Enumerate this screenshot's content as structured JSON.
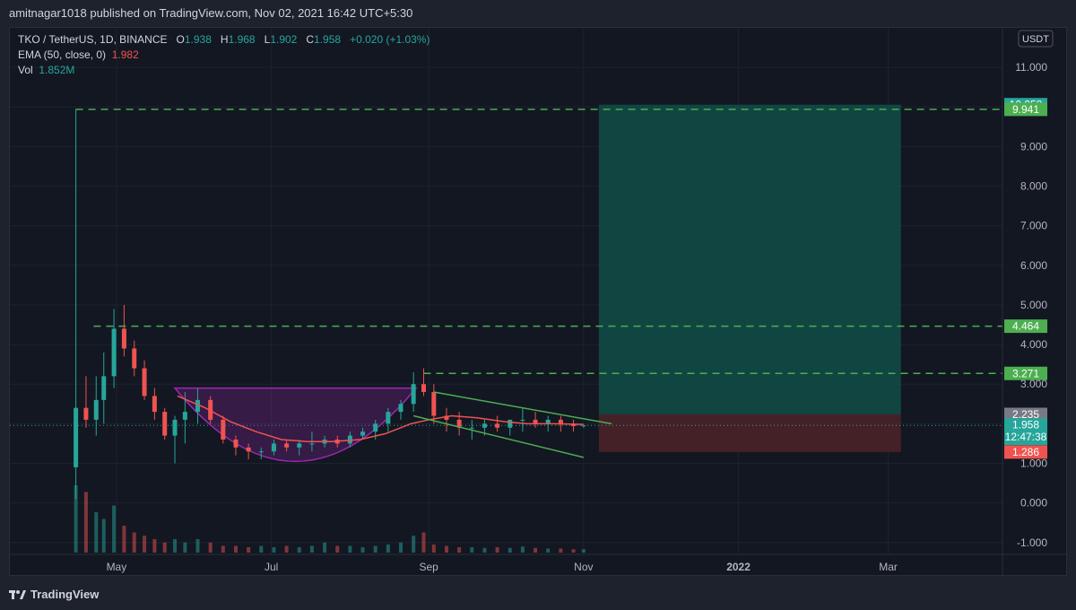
{
  "header": {
    "published": "amitnagar1018 published on TradingView.com, Nov 02, 2021 16:42 UTC+5:30"
  },
  "legend": {
    "symbol": "TKO / TetherUS, 1D, BINANCE",
    "o_label": "O",
    "o": "1.938",
    "h_label": "H",
    "h": "1.968",
    "l_label": "L",
    "l": "1.902",
    "c_label": "C",
    "c": "1.958",
    "change": "+0.020 (+1.03%)",
    "ema_label": "EMA (50, close, 0)",
    "ema_value": "1.982",
    "vol_label": "Vol",
    "vol_value": "1.852M"
  },
  "currency_badge": "USDT",
  "footer": {
    "brand": "TradingView"
  },
  "colors": {
    "background": "#131722",
    "up": "#26a69a",
    "down": "#ef5350",
    "ema": "#ef5350",
    "level_line": "#4caf50",
    "target_zone": "#124d48",
    "stop_zone": "#4a2228",
    "cup": "#9c27b0",
    "channel": "#4caf50"
  },
  "chart_data": {
    "type": "candlestick",
    "y_axis": {
      "ticks": [
        "11.000",
        "10.000",
        "9.000",
        "8.000",
        "7.000",
        "6.000",
        "5.000",
        "4.000",
        "3.000",
        "2.000",
        "1.000",
        "0.000",
        "-1.000"
      ],
      "tick_values": [
        11,
        10,
        9,
        8,
        7,
        6,
        5,
        4,
        3,
        2,
        1,
        0,
        -1
      ],
      "range": [
        -1.3,
        12.0
      ]
    },
    "x_axis": {
      "ticks": [
        "May",
        "Jul",
        "Sep",
        "Nov",
        "2022",
        "Mar"
      ],
      "tick_dates": [
        "2021-05-01",
        "2021-07-01",
        "2021-09-01",
        "2021-11-01",
        "2022-01-01",
        "2022-03-01"
      ],
      "range": [
        "2021-03-20",
        "2022-04-15"
      ]
    },
    "price_labels": [
      {
        "value": 10.058,
        "text": "10.058",
        "kind": "target"
      },
      {
        "value": 9.941,
        "text": "9.941",
        "kind": "level"
      },
      {
        "value": 4.464,
        "text": "4.464",
        "kind": "level"
      },
      {
        "value": 3.271,
        "text": "3.271",
        "kind": "level"
      },
      {
        "value": 2.235,
        "text": "2.235",
        "kind": "entry"
      },
      {
        "value": 1.958,
        "text": "1.958",
        "kind": "last",
        "countdown": "12:47:38"
      },
      {
        "value": 1.286,
        "text": "1.286",
        "kind": "stop"
      }
    ],
    "horizontal_levels": [
      {
        "value": 9.941,
        "from": "2021-04-15"
      },
      {
        "value": 4.464,
        "from": "2021-04-22"
      },
      {
        "value": 3.271,
        "from": "2021-08-30"
      }
    ],
    "position_tool": {
      "from": "2021-11-07",
      "to": "2022-03-06",
      "entry": 2.235,
      "target": 10.058,
      "stop": 1.286
    },
    "series": [
      {
        "name": "TKO / TetherUS",
        "kind": "candles",
        "x": [
          "2021-04-15",
          "2021-04-19",
          "2021-04-23",
          "2021-04-26",
          "2021-04-30",
          "2021-05-04",
          "2021-05-08",
          "2021-05-12",
          "2021-05-16",
          "2021-05-20",
          "2021-05-24",
          "2021-05-28",
          "2021-06-02",
          "2021-06-07",
          "2021-06-12",
          "2021-06-17",
          "2021-06-22",
          "2021-06-27",
          "2021-07-02",
          "2021-07-07",
          "2021-07-12",
          "2021-07-17",
          "2021-07-22",
          "2021-07-27",
          "2021-08-01",
          "2021-08-06",
          "2021-08-11",
          "2021-08-16",
          "2021-08-21",
          "2021-08-26",
          "2021-08-30",
          "2021-09-03",
          "2021-09-08",
          "2021-09-13",
          "2021-09-18",
          "2021-09-23",
          "2021-09-28",
          "2021-10-03",
          "2021-10-08",
          "2021-10-13",
          "2021-10-18",
          "2021-10-23",
          "2021-10-28",
          "2021-11-01"
        ],
        "open": [
          0.9,
          2.4,
          2.1,
          2.6,
          3.2,
          4.4,
          3.9,
          3.4,
          2.7,
          2.3,
          1.7,
          2.1,
          2.3,
          2.6,
          2.1,
          1.6,
          1.4,
          1.3,
          1.3,
          1.5,
          1.4,
          1.5,
          1.5,
          1.6,
          1.5,
          1.7,
          1.8,
          2.0,
          2.3,
          2.5,
          3.0,
          2.8,
          2.2,
          2.1,
          1.9,
          1.9,
          2.0,
          1.9,
          2.1,
          2.1,
          2.0,
          2.1,
          2.0,
          1.94
        ],
        "high": [
          9.95,
          3.2,
          3.2,
          3.8,
          4.9,
          5.0,
          4.1,
          3.6,
          2.9,
          2.4,
          2.2,
          2.8,
          2.9,
          2.7,
          2.2,
          1.7,
          1.5,
          1.4,
          1.6,
          1.6,
          1.6,
          1.8,
          1.7,
          1.7,
          1.8,
          1.9,
          2.1,
          2.4,
          2.6,
          3.3,
          3.4,
          3.0,
          2.4,
          2.3,
          2.1,
          2.1,
          2.2,
          2.1,
          2.4,
          2.3,
          2.2,
          2.2,
          2.1,
          1.97
        ],
        "low": [
          0.1,
          1.9,
          1.7,
          2.0,
          2.9,
          3.7,
          3.2,
          2.6,
          2.1,
          1.6,
          1.0,
          1.5,
          2.0,
          2.0,
          1.5,
          1.2,
          1.1,
          1.1,
          1.2,
          1.3,
          1.2,
          1.3,
          1.4,
          1.4,
          1.4,
          1.6,
          1.6,
          1.8,
          2.1,
          2.3,
          2.7,
          2.0,
          1.8,
          1.7,
          1.6,
          1.7,
          1.8,
          1.7,
          1.8,
          1.9,
          1.8,
          1.8,
          1.8,
          1.9
        ],
        "close": [
          2.4,
          2.1,
          2.6,
          3.2,
          4.4,
          3.9,
          3.4,
          2.7,
          2.3,
          1.7,
          2.1,
          2.3,
          2.6,
          2.1,
          1.6,
          1.4,
          1.3,
          1.3,
          1.5,
          1.4,
          1.5,
          1.5,
          1.6,
          1.5,
          1.7,
          1.8,
          2.0,
          2.3,
          2.5,
          3.0,
          2.8,
          2.2,
          2.1,
          1.9,
          1.9,
          2.0,
          1.9,
          2.1,
          2.1,
          2.0,
          2.1,
          2.0,
          1.94,
          1.958
        ],
        "volume": [
          1.0,
          0.9,
          0.6,
          0.5,
          0.7,
          0.4,
          0.3,
          0.25,
          0.2,
          0.15,
          0.2,
          0.15,
          0.2,
          0.15,
          0.1,
          0.1,
          0.08,
          0.1,
          0.08,
          0.1,
          0.08,
          0.1,
          0.15,
          0.1,
          0.1,
          0.08,
          0.1,
          0.12,
          0.15,
          0.25,
          0.3,
          0.12,
          0.1,
          0.08,
          0.08,
          0.07,
          0.08,
          0.07,
          0.09,
          0.07,
          0.06,
          0.06,
          0.05,
          0.05
        ]
      },
      {
        "name": "EMA (50, close, 0)",
        "kind": "line",
        "x": [
          "2021-05-25",
          "2021-06-05",
          "2021-06-15",
          "2021-06-25",
          "2021-07-05",
          "2021-07-15",
          "2021-07-25",
          "2021-08-05",
          "2021-08-15",
          "2021-08-25",
          "2021-09-01",
          "2021-09-10",
          "2021-09-20",
          "2021-10-01",
          "2021-10-10",
          "2021-10-20",
          "2021-11-01"
        ],
        "y": [
          2.7,
          2.4,
          2.05,
          1.8,
          1.6,
          1.55,
          1.55,
          1.6,
          1.75,
          2.0,
          2.1,
          2.2,
          2.15,
          2.05,
          2.0,
          2.0,
          1.982
        ]
      }
    ],
    "annotations": {
      "cup": {
        "from": "2021-05-24",
        "to": "2021-08-27",
        "top": 2.9,
        "bottom": 1.0
      },
      "channel": {
        "upper": [
          [
            "2021-09-03",
            2.8
          ],
          [
            "2021-11-12",
            2.0
          ]
        ],
        "lower": [
          [
            "2021-08-26",
            2.2
          ],
          [
            "2021-11-01",
            1.15
          ]
        ]
      }
    }
  }
}
